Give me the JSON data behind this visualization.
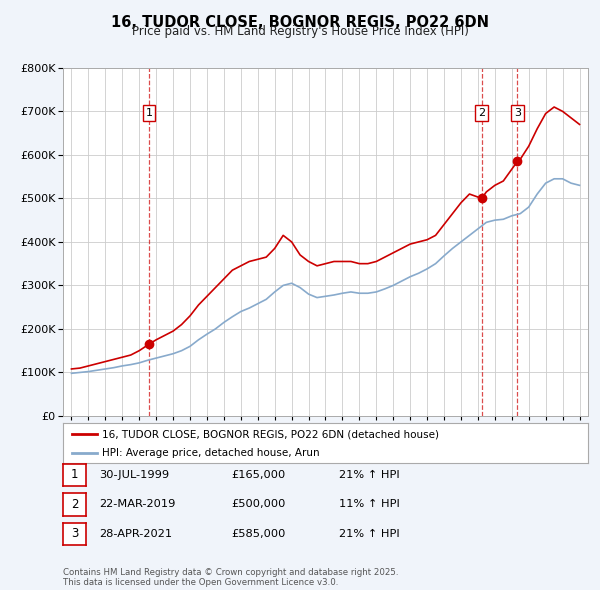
{
  "title": "16, TUDOR CLOSE, BOGNOR REGIS, PO22 6DN",
  "subtitle": "Price paid vs. HM Land Registry's House Price Index (HPI)",
  "legend_label_red": "16, TUDOR CLOSE, BOGNOR REGIS, PO22 6DN (detached house)",
  "legend_label_blue": "HPI: Average price, detached house, Arun",
  "footnote": "Contains HM Land Registry data © Crown copyright and database right 2025.\nThis data is licensed under the Open Government Licence v3.0.",
  "sale_labels": [
    {
      "num": "1",
      "date": "30-JUL-1999",
      "price": "£165,000",
      "pct": "21% ↑ HPI"
    },
    {
      "num": "2",
      "date": "22-MAR-2019",
      "price": "£500,000",
      "pct": "11% ↑ HPI"
    },
    {
      "num": "3",
      "date": "28-APR-2021",
      "price": "£585,000",
      "pct": "21% ↑ HPI"
    }
  ],
  "sale_years": [
    1999.58,
    2019.22,
    2021.33
  ],
  "sale_prices_red": [
    165000,
    500000,
    585000
  ],
  "vline_color": "#cc0000",
  "red_color": "#cc0000",
  "blue_color": "#88aacc",
  "marker_color_red": "#cc0000",
  "ylim": [
    0,
    800000
  ],
  "yticks": [
    0,
    100000,
    200000,
    300000,
    400000,
    500000,
    600000,
    700000,
    800000
  ],
  "xlim_start": 1994.5,
  "xlim_end": 2025.5,
  "bg_color": "#f0f4fa",
  "plot_bg": "#ffffff",
  "grid_color": "#cccccc",
  "red_line_data": {
    "years": [
      1995.0,
      1995.5,
      1996.0,
      1996.5,
      1997.0,
      1997.5,
      1998.0,
      1998.5,
      1999.0,
      1999.58,
      2000.0,
      2000.5,
      2001.0,
      2001.5,
      2002.0,
      2002.5,
      2003.0,
      2003.5,
      2004.0,
      2004.5,
      2005.0,
      2005.5,
      2006.0,
      2006.5,
      2007.0,
      2007.5,
      2008.0,
      2008.5,
      2009.0,
      2009.5,
      2010.0,
      2010.5,
      2011.0,
      2011.5,
      2012.0,
      2012.5,
      2013.0,
      2013.5,
      2014.0,
      2014.5,
      2015.0,
      2015.5,
      2016.0,
      2016.5,
      2017.0,
      2017.5,
      2018.0,
      2018.5,
      2019.22,
      2019.5,
      2020.0,
      2020.5,
      2021.33,
      2021.5,
      2022.0,
      2022.5,
      2023.0,
      2023.5,
      2024.0,
      2024.5,
      2025.0
    ],
    "values": [
      108000,
      110000,
      115000,
      120000,
      125000,
      130000,
      135000,
      140000,
      150000,
      165000,
      175000,
      185000,
      195000,
      210000,
      230000,
      255000,
      275000,
      295000,
      315000,
      335000,
      345000,
      355000,
      360000,
      365000,
      385000,
      415000,
      400000,
      370000,
      355000,
      345000,
      350000,
      355000,
      355000,
      355000,
      350000,
      350000,
      355000,
      365000,
      375000,
      385000,
      395000,
      400000,
      405000,
      415000,
      440000,
      465000,
      490000,
      510000,
      500000,
      515000,
      530000,
      540000,
      585000,
      590000,
      620000,
      660000,
      695000,
      710000,
      700000,
      685000,
      670000
    ]
  },
  "blue_line_data": {
    "years": [
      1995.0,
      1995.5,
      1996.0,
      1996.5,
      1997.0,
      1997.5,
      1998.0,
      1998.5,
      1999.0,
      1999.5,
      2000.0,
      2000.5,
      2001.0,
      2001.5,
      2002.0,
      2002.5,
      2003.0,
      2003.5,
      2004.0,
      2004.5,
      2005.0,
      2005.5,
      2006.0,
      2006.5,
      2007.0,
      2007.5,
      2008.0,
      2008.5,
      2009.0,
      2009.5,
      2010.0,
      2010.5,
      2011.0,
      2011.5,
      2012.0,
      2012.5,
      2013.0,
      2013.5,
      2014.0,
      2014.5,
      2015.0,
      2015.5,
      2016.0,
      2016.5,
      2017.0,
      2017.5,
      2018.0,
      2018.5,
      2019.0,
      2019.5,
      2020.0,
      2020.5,
      2021.0,
      2021.5,
      2022.0,
      2022.5,
      2023.0,
      2023.5,
      2024.0,
      2024.5,
      2025.0
    ],
    "values": [
      98000,
      100000,
      102000,
      105000,
      108000,
      111000,
      115000,
      118000,
      122000,
      128000,
      133000,
      138000,
      143000,
      150000,
      160000,
      175000,
      188000,
      200000,
      215000,
      228000,
      240000,
      248000,
      258000,
      268000,
      285000,
      300000,
      305000,
      295000,
      280000,
      272000,
      275000,
      278000,
      282000,
      285000,
      282000,
      282000,
      285000,
      292000,
      300000,
      310000,
      320000,
      328000,
      338000,
      350000,
      368000,
      385000,
      400000,
      415000,
      430000,
      445000,
      450000,
      452000,
      460000,
      465000,
      480000,
      510000,
      535000,
      545000,
      545000,
      535000,
      530000
    ]
  }
}
